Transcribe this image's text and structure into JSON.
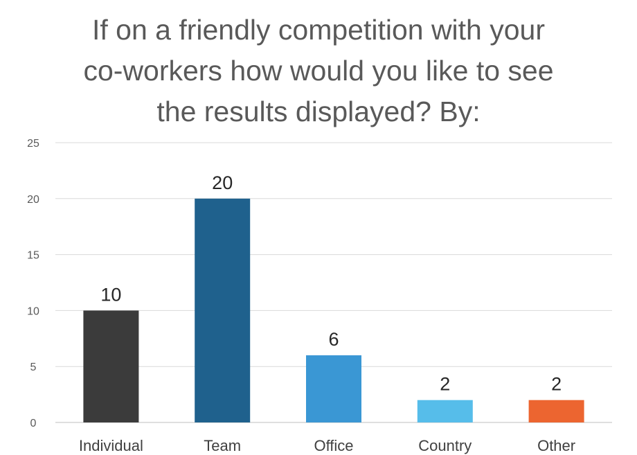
{
  "chart_data": {
    "type": "bar",
    "title_lines": [
      "If on a friendly competition with your",
      "co-workers how would you like to see",
      "the results displayed? By:"
    ],
    "categories": [
      "Individual",
      "Team",
      "Office",
      "Country",
      "Other"
    ],
    "values": [
      10,
      20,
      6,
      2,
      2
    ],
    "colors": [
      "#3b3b3b",
      "#1f618d",
      "#3a97d4",
      "#56bdea",
      "#ec6530"
    ],
    "xlabel": "",
    "ylabel": "",
    "ylim": [
      0,
      25
    ],
    "yticks": [
      0,
      5,
      10,
      15,
      20,
      25
    ],
    "grid": true,
    "legend": "none",
    "data_labels": true
  }
}
